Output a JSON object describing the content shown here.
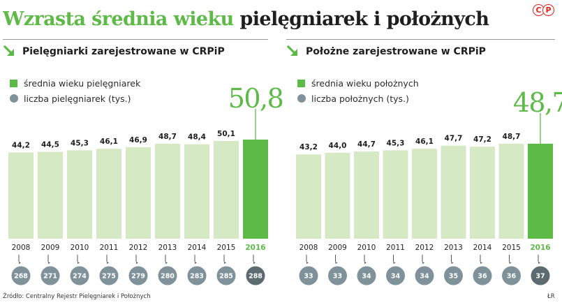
{
  "title": {
    "accent": "Wzrasta średnia wieku",
    "rest": "pielęgniarek i położnych"
  },
  "logo_text": "©P",
  "colors": {
    "accent": "#5dba47",
    "bar_light": "#d5e9c4",
    "bar_highlight": "#5dba47",
    "circle": "#7f929a",
    "circle_highlight": "#5b6b70"
  },
  "source": "Źródło: Centralny Rejestr Pielęgniarek i Położnych",
  "credit": "ŁR",
  "chart_data": [
    {
      "type": "bar",
      "title": "Pielęgniarki zarejestrowane w CRPiP",
      "legend": [
        "średnia wieku pielęgniarek",
        "liczba pielęgniarek (tys.)"
      ],
      "categories": [
        "2008",
        "2009",
        "2010",
        "2011",
        "2012",
        "2013",
        "2014",
        "2015",
        "2016"
      ],
      "values": [
        44.2,
        44.5,
        45.3,
        46.1,
        46.9,
        48.7,
        48.4,
        50.1,
        50.8
      ],
      "value_labels": [
        "44,2",
        "44,5",
        "45,3",
        "46,1",
        "46,9",
        "48,7",
        "48,4",
        "50,1",
        "50,8"
      ],
      "counts": [
        268,
        271,
        274,
        275,
        279,
        280,
        283,
        285,
        288
      ],
      "highlight": "2016"
    },
    {
      "type": "bar",
      "title": "Położne zarejestrowane w CRPiP",
      "legend": [
        "średnia wieku położnych",
        "liczba położnych (tys.)"
      ],
      "categories": [
        "2008",
        "2009",
        "2010",
        "2011",
        "2012",
        "2013",
        "2014",
        "2015",
        "2016"
      ],
      "values": [
        43.2,
        44.0,
        44.7,
        45.3,
        46.1,
        47.7,
        47.2,
        48.7,
        48.7
      ],
      "value_labels": [
        "43,2",
        "44,0",
        "44,7",
        "45,3",
        "46,1",
        "47,7",
        "47,2",
        "48,7",
        "48,7"
      ],
      "counts": [
        33,
        33,
        34,
        34,
        34,
        35,
        36,
        36,
        37
      ],
      "highlight": "2016"
    }
  ]
}
